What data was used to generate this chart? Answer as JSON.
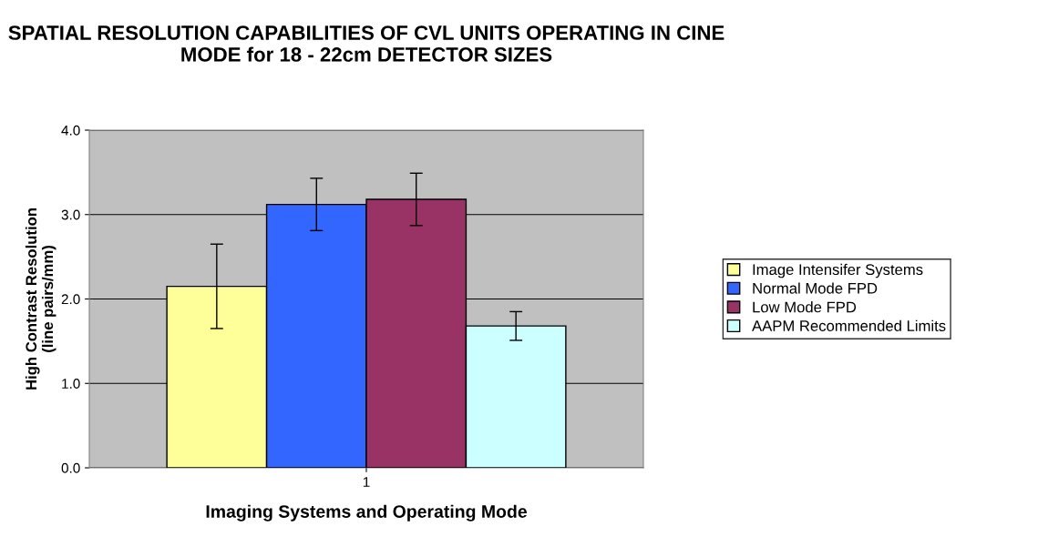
{
  "chart_data": {
    "type": "bar",
    "title": "SPATIAL RESOLUTION CAPABILITIES OF CVL UNITS OPERATING IN CINE MODE for 18 - 22cm DETECTOR SIZES",
    "xlabel": "Imaging Systems and Operating Mode",
    "ylabel": "High Contrast Resolution\n(line pairs/mm)",
    "categories": [
      "1"
    ],
    "series": [
      {
        "name": "Image Intensifer Systems",
        "color": "#ffff99",
        "values": [
          2.15
        ],
        "errors": [
          0.5
        ]
      },
      {
        "name": "Normal Mode FPD",
        "color": "#3366ff",
        "values": [
          3.12
        ],
        "errors": [
          0.31
        ]
      },
      {
        "name": "Low Mode FPD",
        "color": "#993366",
        "values": [
          3.18
        ],
        "errors": [
          0.31
        ]
      },
      {
        "name": "AAPM Recommended Limits",
        "color": "#ccffff",
        "values": [
          1.68
        ],
        "errors": [
          0.17
        ]
      }
    ],
    "ylim": [
      0,
      4
    ],
    "yticks": [
      {
        "value": 0,
        "label": "0.0"
      },
      {
        "value": 1,
        "label": "1.0"
      },
      {
        "value": 2,
        "label": "2.0"
      },
      {
        "value": 3,
        "label": "3.0"
      },
      {
        "value": 4,
        "label": "4.0"
      }
    ],
    "grid": "y",
    "legend": "right"
  }
}
